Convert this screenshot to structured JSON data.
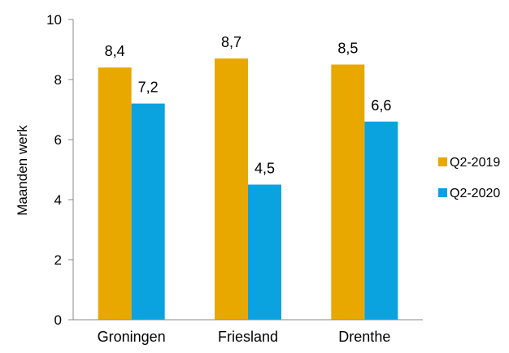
{
  "chart_data": {
    "type": "bar",
    "categories": [
      "Groningen",
      "Friesland",
      "Drenthe"
    ],
    "series": [
      {
        "name": "Q2-2019",
        "values": [
          8.4,
          8.7,
          8.5
        ],
        "labels": [
          "8,4",
          "8,7",
          "8,5"
        ],
        "color": "#E8A800"
      },
      {
        "name": "Q2-2020",
        "values": [
          7.2,
          4.5,
          6.6
        ],
        "labels": [
          "7,2",
          "4,5",
          "6,6"
        ],
        "color": "#0AA3E0"
      }
    ],
    "ylabel": "Maanden werk",
    "ylim": [
      0,
      10
    ],
    "yticks": [
      0,
      2,
      4,
      6,
      8,
      10
    ],
    "grid": false,
    "legend_position": "right"
  }
}
